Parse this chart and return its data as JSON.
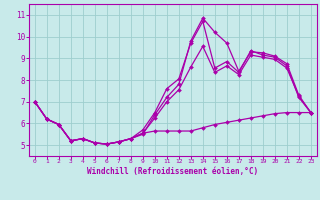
{
  "xlabel": "Windchill (Refroidissement éolien,°C)",
  "xlim": [
    -0.5,
    23.5
  ],
  "ylim": [
    4.5,
    11.5
  ],
  "xticks": [
    0,
    1,
    2,
    3,
    4,
    5,
    6,
    7,
    8,
    9,
    10,
    11,
    12,
    13,
    14,
    15,
    16,
    17,
    18,
    19,
    20,
    21,
    22,
    23
  ],
  "yticks": [
    5,
    6,
    7,
    8,
    9,
    10,
    11
  ],
  "background_color": "#c8eaea",
  "line_color": "#aa00aa",
  "grid_color": "#9ecece",
  "series": [
    [
      7.0,
      6.2,
      5.95,
      5.2,
      5.3,
      5.1,
      5.05,
      5.15,
      5.3,
      5.5,
      6.4,
      7.2,
      7.8,
      9.8,
      10.85,
      10.2,
      9.7,
      8.4,
      9.3,
      9.25,
      9.1,
      8.75,
      7.3,
      6.5
    ],
    [
      7.0,
      6.2,
      5.95,
      5.2,
      5.3,
      5.1,
      5.05,
      5.15,
      5.3,
      5.55,
      5.65,
      5.65,
      5.65,
      5.65,
      5.8,
      5.95,
      6.05,
      6.15,
      6.25,
      6.35,
      6.45,
      6.5,
      6.5,
      6.5
    ],
    [
      7.0,
      6.2,
      5.95,
      5.2,
      5.3,
      5.1,
      5.05,
      5.15,
      5.3,
      5.7,
      6.5,
      7.6,
      8.05,
      9.7,
      10.7,
      8.55,
      8.85,
      8.35,
      9.35,
      9.15,
      9.05,
      8.65,
      7.2,
      6.5
    ],
    [
      7.0,
      6.2,
      5.95,
      5.2,
      5.3,
      5.1,
      5.05,
      5.15,
      5.3,
      5.55,
      6.25,
      7.0,
      7.55,
      8.6,
      9.55,
      8.35,
      8.65,
      8.25,
      9.15,
      9.05,
      8.95,
      8.55,
      7.25,
      6.5
    ]
  ]
}
